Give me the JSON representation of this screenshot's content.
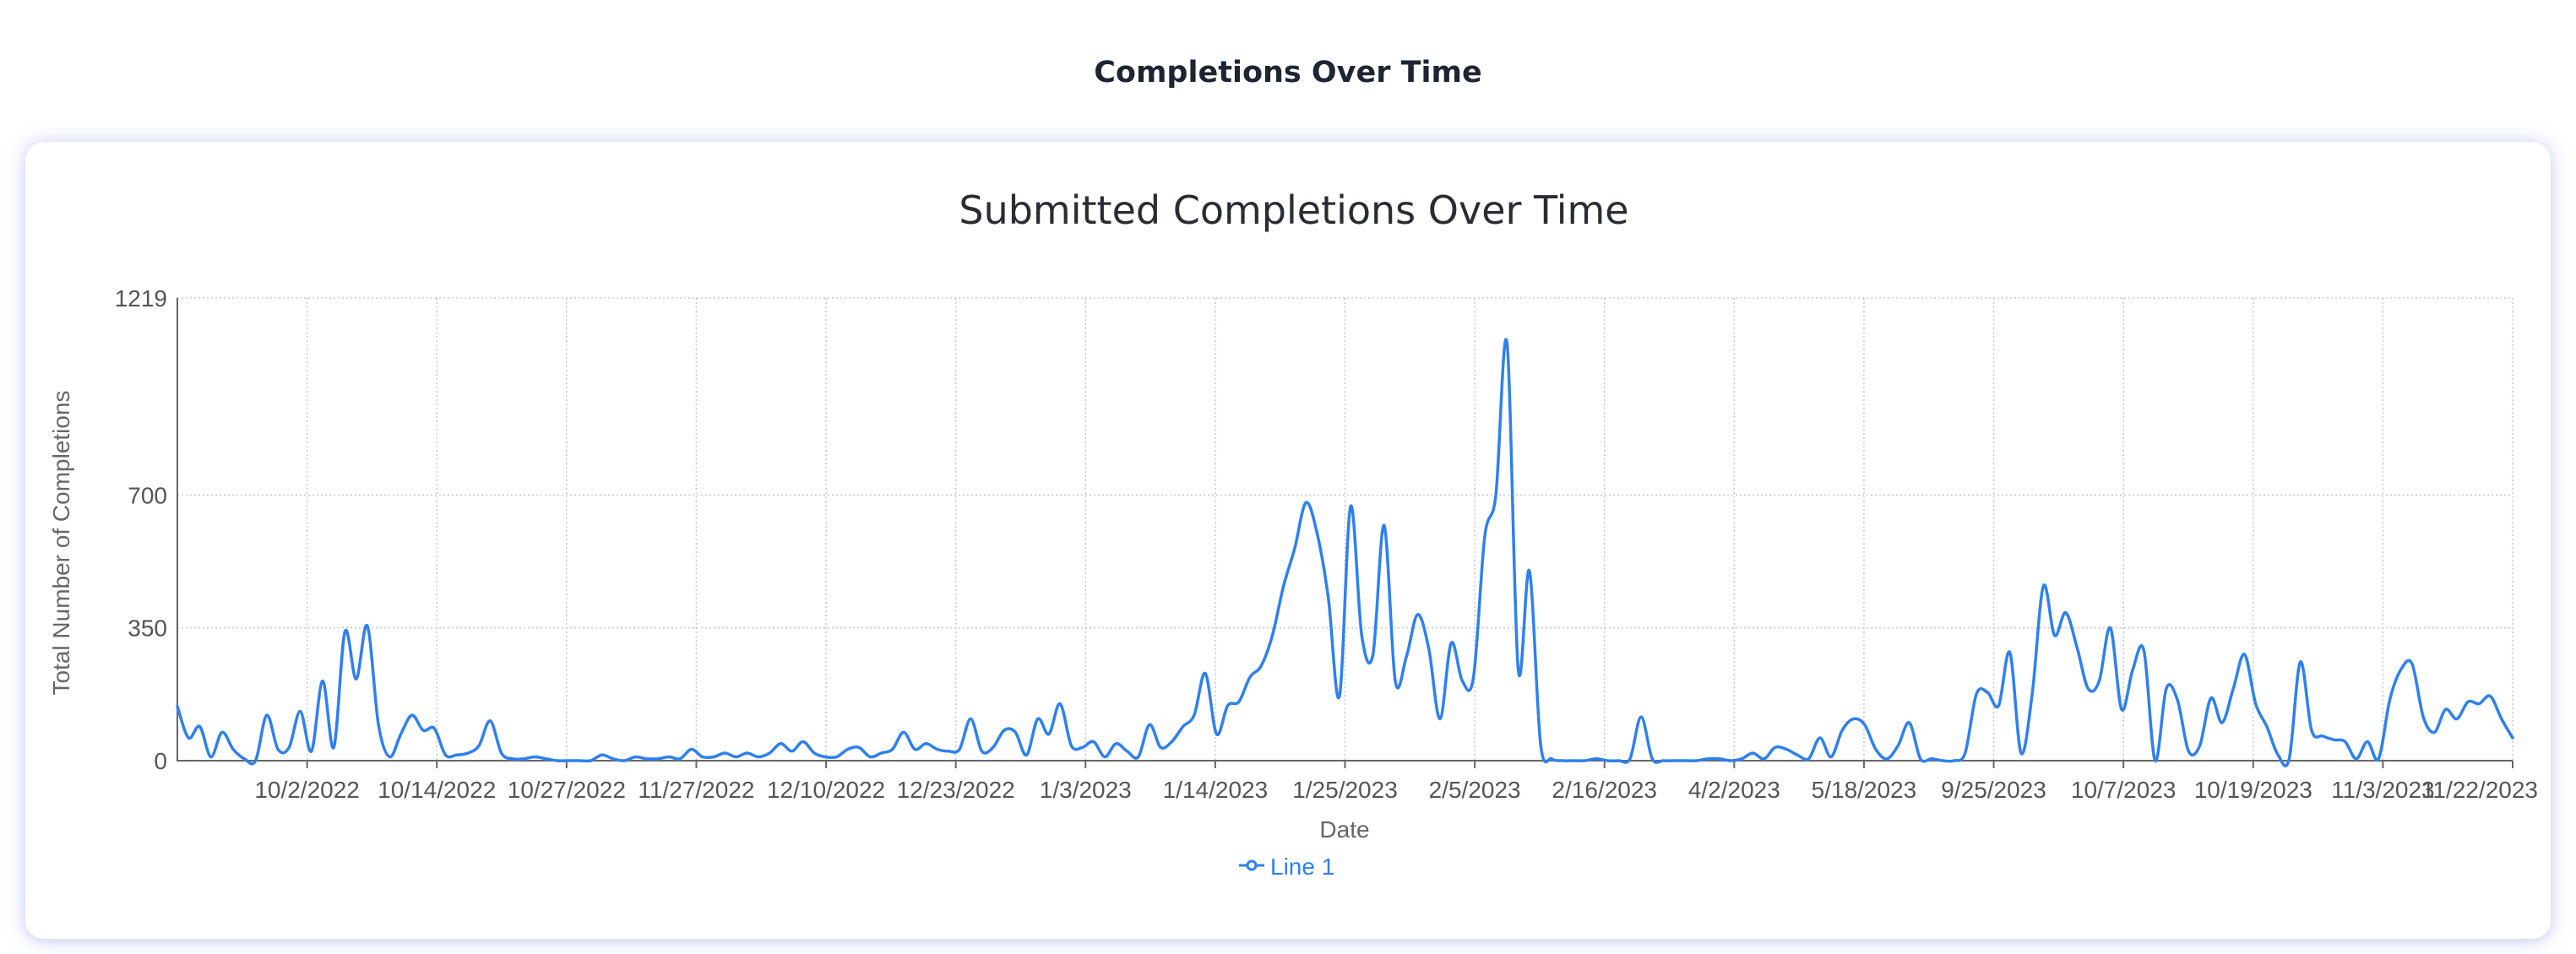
{
  "page": {
    "heading": "Completions Over Time"
  },
  "colors": {
    "line": "#2f80ed",
    "grid": "#c8c8c8",
    "axis": "#666666",
    "card_shadow": "#7686e6"
  },
  "chart_data": {
    "type": "line",
    "title": "Submitted Completions Over Time",
    "xlabel": "Date",
    "ylabel": "Total Number of Completions",
    "ylim": [
      0,
      1219
    ],
    "y_ticks": [
      0,
      350,
      700,
      1219
    ],
    "x_tick_labels": [
      "10/2/2022",
      "10/14/2022",
      "10/27/2022",
      "11/27/2022",
      "12/10/2022",
      "12/23/2022",
      "1/3/2023",
      "1/14/2023",
      "1/25/2023",
      "2/5/2023",
      "2/16/2023",
      "4/2/2023",
      "5/18/2023",
      "9/25/2023",
      "10/7/2023",
      "10/19/2023",
      "11/3/2023",
      "11/22/2023"
    ],
    "grid": true,
    "legend": {
      "position": "bottom-center"
    },
    "series": [
      {
        "name": "Line 1",
        "values": [
          143,
          60,
          90,
          10,
          75,
          30,
          5,
          0,
          120,
          30,
          35,
          130,
          25,
          210,
          35,
          340,
          215,
          355,
          95,
          10,
          70,
          120,
          80,
          85,
          15,
          15,
          20,
          40,
          105,
          20,
          5,
          5,
          10,
          5,
          0,
          0,
          0,
          0,
          15,
          5,
          0,
          10,
          5,
          5,
          10,
          5,
          30,
          10,
          10,
          20,
          10,
          20,
          10,
          20,
          45,
          25,
          50,
          20,
          10,
          10,
          30,
          35,
          10,
          20,
          30,
          75,
          30,
          45,
          30,
          25,
          30,
          110,
          25,
          35,
          80,
          75,
          15,
          110,
          70,
          150,
          40,
          35,
          50,
          10,
          45,
          25,
          10,
          95,
          35,
          50,
          90,
          120,
          230,
          70,
          145,
          155,
          220,
          250,
          330,
          460,
          560,
          680,
          600,
          430,
          170,
          670,
          330,
          280,
          620,
          210,
          275,
          385,
          295,
          110,
          310,
          210,
          220,
          590,
          700,
          1100,
          240,
          500,
          45,
          5,
          0,
          0,
          0,
          5,
          0,
          0,
          5,
          115,
          5,
          0,
          0,
          0,
          0,
          5,
          5,
          0,
          5,
          20,
          5,
          35,
          30,
          15,
          5,
          60,
          10,
          80,
          110,
          95,
          30,
          5,
          40,
          100,
          5,
          5,
          0,
          0,
          20,
          175,
          180,
          145,
          285,
          20,
          175,
          460,
          330,
          390,
          300,
          190,
          210,
          350,
          135,
          240,
          290,
          0,
          190,
          160,
          25,
          40,
          165,
          100,
          190,
          280,
          150,
          90,
          15,
          5,
          260,
          80,
          65,
          55,
          50,
          5,
          50,
          5,
          160,
          240,
          255,
          115,
          75,
          135,
          110,
          155,
          150,
          170,
          110,
          60
        ]
      }
    ]
  }
}
